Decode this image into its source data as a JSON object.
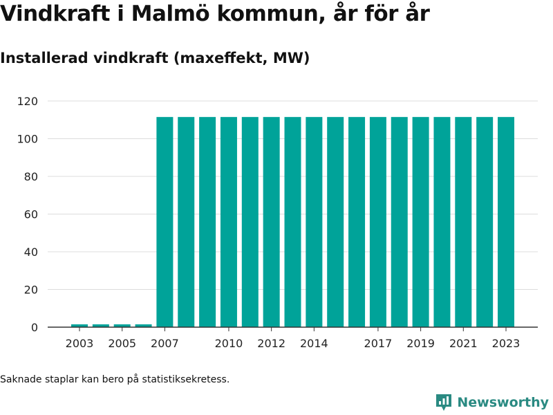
{
  "header": {
    "title": "Vindkraft i Malmö kommun, år för år",
    "subtitle": "Installerad vindkraft (maxeffekt, MW)"
  },
  "footnote": "Saknade staplar kan bero på statistiksekretess.",
  "brand": {
    "name": "Newsworthy",
    "icon": "newsworthy-logo-icon",
    "color": "#2a8a82"
  },
  "chart_data": {
    "type": "bar",
    "categories": [
      "2003",
      "2004",
      "2005",
      "2006",
      "2007",
      "2008",
      "2009",
      "2010",
      "2011",
      "2012",
      "2013",
      "2014",
      "2015",
      "2016",
      "2017",
      "2018",
      "2019",
      "2020",
      "2021",
      "2022",
      "2023"
    ],
    "values": [
      1.5,
      1.5,
      1.5,
      1.5,
      111.5,
      111.5,
      111.5,
      111.5,
      111.5,
      111.5,
      111.5,
      111.5,
      111.5,
      111.5,
      111.5,
      111.5,
      111.5,
      111.5,
      111.5,
      111.5,
      111.5
    ],
    "x_tick_labels": [
      "2003",
      "2005",
      "2007",
      "2010",
      "2012",
      "2014",
      "2017",
      "2019",
      "2021",
      "2023"
    ],
    "y_ticks": [
      0,
      20,
      40,
      60,
      80,
      100,
      120
    ],
    "ylim": [
      0,
      120
    ],
    "grid": true,
    "bar_color": "#00a399"
  }
}
